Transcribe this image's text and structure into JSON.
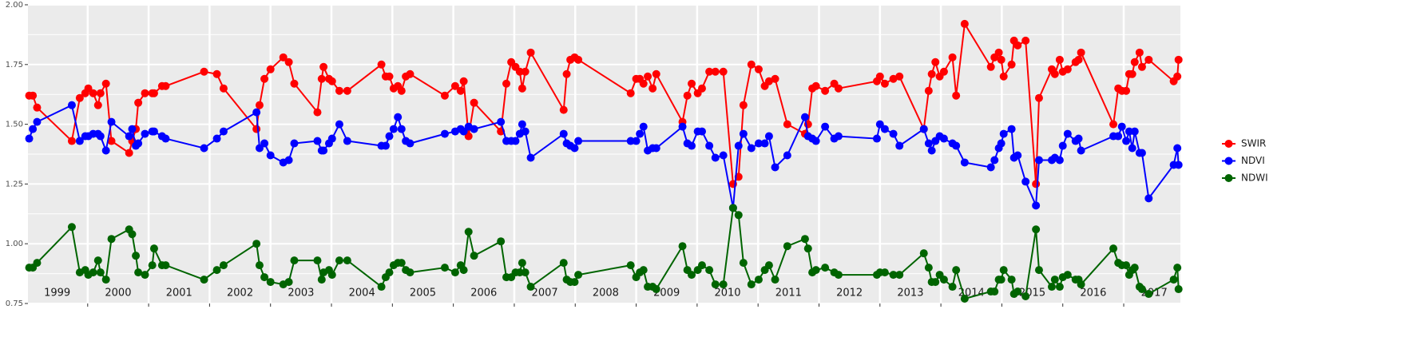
{
  "chart_data": {
    "type": "line",
    "x": [
      1999.04,
      1999.1,
      1999.17,
      1999.74,
      1999.87,
      1999.96,
      2000.01,
      2000.09,
      2000.17,
      2000.21,
      2000.3,
      2000.39,
      2000.68,
      2000.73,
      2000.79,
      2000.83,
      2000.94,
      2001.06,
      2001.09,
      2001.22,
      2001.28,
      2001.91,
      2002.12,
      2002.23,
      2002.77,
      2002.82,
      2002.9,
      2003.0,
      2003.21,
      2003.3,
      2003.39,
      2003.77,
      2003.84,
      2003.87,
      2003.96,
      2004.01,
      2004.13,
      2004.26,
      2004.82,
      2004.89,
      2004.95,
      2005.02,
      2005.09,
      2005.15,
      2005.22,
      2005.29,
      2005.86,
      2006.03,
      2006.12,
      2006.17,
      2006.25,
      2006.34,
      2006.78,
      2006.87,
      2006.95,
      2007.02,
      2007.09,
      2007.13,
      2007.18,
      2007.27,
      2007.81,
      2007.86,
      2007.92,
      2007.99,
      2008.05,
      2008.91,
      2009.0,
      2009.06,
      2009.12,
      2009.19,
      2009.27,
      2009.33,
      2009.76,
      2009.84,
      2009.91,
      2010.01,
      2010.08,
      2010.2,
      2010.3,
      2010.43,
      2010.59,
      2010.68,
      2010.76,
      2010.89,
      2011.01,
      2011.11,
      2011.18,
      2011.28,
      2011.48,
      2011.77,
      2011.82,
      2011.89,
      2011.95,
      2012.1,
      2012.25,
      2012.32,
      2012.95,
      2013.0,
      2013.08,
      2013.22,
      2013.32,
      2013.72,
      2013.8,
      2013.85,
      2013.91,
      2013.98,
      2014.05,
      2014.19,
      2014.25,
      2014.39,
      2014.82,
      2014.88,
      2014.95,
      2014.99,
      2015.03,
      2015.16,
      2015.2,
      2015.26,
      2015.39,
      2015.56,
      2015.61,
      2015.82,
      2015.87,
      2015.95,
      2016.0,
      2016.08,
      2016.21,
      2016.26,
      2016.3,
      2016.83,
      2016.91,
      2016.97,
      2017.04,
      2017.09,
      2017.14,
      2017.18,
      2017.26,
      2017.3,
      2017.41,
      2017.82,
      2017.88,
      2017.9
    ],
    "series": [
      {
        "name": "SWIR",
        "color": "#ff0000",
        "values": [
          1.62,
          1.62,
          1.57,
          1.43,
          1.61,
          1.63,
          1.65,
          1.63,
          1.58,
          1.63,
          1.67,
          1.43,
          1.38,
          1.43,
          1.48,
          1.59,
          1.63,
          1.63,
          1.63,
          1.66,
          1.66,
          1.72,
          1.71,
          1.65,
          1.48,
          1.58,
          1.69,
          1.73,
          1.78,
          1.76,
          1.67,
          1.55,
          1.69,
          1.74,
          1.69,
          1.68,
          1.64,
          1.64,
          1.75,
          1.7,
          1.7,
          1.65,
          1.66,
          1.64,
          1.7,
          1.71,
          1.62,
          1.66,
          1.64,
          1.68,
          1.45,
          1.59,
          1.47,
          1.67,
          1.76,
          1.74,
          1.72,
          1.65,
          1.72,
          1.8,
          1.56,
          1.71,
          1.77,
          1.78,
          1.77,
          1.63,
          1.69,
          1.69,
          1.67,
          1.7,
          1.65,
          1.71,
          1.51,
          1.62,
          1.67,
          1.63,
          1.65,
          1.72,
          1.72,
          1.72,
          1.25,
          1.28,
          1.58,
          1.75,
          1.73,
          1.66,
          1.68,
          1.69,
          1.5,
          1.46,
          1.5,
          1.65,
          1.66,
          1.64,
          1.67,
          1.65,
          1.68,
          1.7,
          1.67,
          1.69,
          1.7,
          1.48,
          1.64,
          1.71,
          1.76,
          1.7,
          1.72,
          1.78,
          1.62,
          1.92,
          1.74,
          1.78,
          1.8,
          1.77,
          1.7,
          1.75,
          1.85,
          1.83,
          1.85,
          1.25,
          1.61,
          1.73,
          1.71,
          1.77,
          1.72,
          1.73,
          1.76,
          1.77,
          1.8,
          1.5,
          1.65,
          1.64,
          1.64,
          1.71,
          1.71,
          1.76,
          1.8,
          1.74,
          1.77,
          1.68,
          1.7,
          1.77
        ]
      },
      {
        "name": "NDVI",
        "color": "#0000ff",
        "values": [
          1.44,
          1.48,
          1.51,
          1.58,
          1.43,
          1.45,
          1.45,
          1.46,
          1.46,
          1.45,
          1.39,
          1.51,
          1.45,
          1.48,
          1.41,
          1.42,
          1.46,
          1.47,
          1.47,
          1.45,
          1.44,
          1.4,
          1.44,
          1.47,
          1.55,
          1.4,
          1.42,
          1.37,
          1.34,
          1.35,
          1.42,
          1.43,
          1.39,
          1.39,
          1.42,
          1.44,
          1.5,
          1.43,
          1.41,
          1.41,
          1.45,
          1.48,
          1.53,
          1.48,
          1.43,
          1.42,
          1.46,
          1.47,
          1.48,
          1.47,
          1.49,
          1.48,
          1.51,
          1.43,
          1.43,
          1.43,
          1.46,
          1.5,
          1.47,
          1.36,
          1.46,
          1.42,
          1.41,
          1.4,
          1.43,
          1.43,
          1.43,
          1.46,
          1.49,
          1.39,
          1.4,
          1.4,
          1.49,
          1.42,
          1.41,
          1.47,
          1.47,
          1.41,
          1.36,
          1.37,
          1.15,
          1.41,
          1.46,
          1.4,
          1.42,
          1.42,
          1.45,
          1.32,
          1.37,
          1.53,
          1.45,
          1.44,
          1.43,
          1.49,
          1.44,
          1.45,
          1.44,
          1.5,
          1.48,
          1.46,
          1.41,
          1.48,
          1.42,
          1.39,
          1.43,
          1.45,
          1.44,
          1.42,
          1.41,
          1.34,
          1.32,
          1.35,
          1.4,
          1.42,
          1.46,
          1.48,
          1.36,
          1.37,
          1.26,
          1.16,
          1.35,
          1.35,
          1.36,
          1.35,
          1.41,
          1.46,
          1.43,
          1.44,
          1.39,
          1.45,
          1.45,
          1.49,
          1.43,
          1.47,
          1.4,
          1.47,
          1.38,
          1.38,
          1.19,
          1.33,
          1.4,
          1.33
        ]
      },
      {
        "name": "NDWI",
        "color": "#006400",
        "values": [
          0.9,
          0.9,
          0.92,
          1.07,
          0.88,
          0.89,
          0.87,
          0.88,
          0.93,
          0.88,
          0.85,
          1.02,
          1.06,
          1.04,
          0.95,
          0.88,
          0.87,
          0.91,
          0.98,
          0.91,
          0.91,
          0.85,
          0.89,
          0.91,
          1.0,
          0.91,
          0.86,
          0.84,
          0.83,
          0.84,
          0.93,
          0.93,
          0.85,
          0.88,
          0.89,
          0.87,
          0.93,
          0.93,
          0.82,
          0.86,
          0.88,
          0.91,
          0.92,
          0.92,
          0.89,
          0.88,
          0.9,
          0.88,
          0.91,
          0.89,
          1.05,
          0.95,
          1.01,
          0.86,
          0.86,
          0.88,
          0.88,
          0.92,
          0.88,
          0.82,
          0.92,
          0.85,
          0.84,
          0.84,
          0.87,
          0.91,
          0.86,
          0.88,
          0.89,
          0.82,
          0.82,
          0.81,
          0.99,
          0.89,
          0.87,
          0.89,
          0.91,
          0.89,
          0.83,
          0.83,
          1.15,
          1.12,
          0.92,
          0.83,
          0.85,
          0.89,
          0.91,
          0.85,
          0.99,
          1.02,
          0.98,
          0.88,
          0.89,
          0.9,
          0.88,
          0.87,
          0.87,
          0.88,
          0.88,
          0.87,
          0.87,
          0.96,
          0.9,
          0.84,
          0.84,
          0.87,
          0.85,
          0.82,
          0.89,
          0.77,
          0.8,
          0.8,
          0.85,
          0.85,
          0.89,
          0.85,
          0.79,
          0.8,
          0.78,
          1.06,
          0.89,
          0.82,
          0.85,
          0.82,
          0.86,
          0.87,
          0.85,
          0.85,
          0.83,
          0.98,
          0.92,
          0.91,
          0.91,
          0.87,
          0.89,
          0.9,
          0.82,
          0.81,
          0.79,
          0.85,
          0.9,
          0.81
        ]
      }
    ],
    "xlim": [
      1999.02,
      2017.93
    ],
    "xgrid": [
      2000,
      2001,
      2002,
      2003,
      2004,
      2005,
      2006,
      2007,
      2008,
      2009,
      2010,
      2011,
      2012,
      2013,
      2014,
      2015,
      2016,
      2017
    ],
    "xticks": [
      {
        "value": 1999.5,
        "label": "1999"
      },
      {
        "value": 2000.5,
        "label": "2000"
      },
      {
        "value": 2001.5,
        "label": "2001"
      },
      {
        "value": 2002.5,
        "label": "2002"
      },
      {
        "value": 2003.5,
        "label": "2003"
      },
      {
        "value": 2004.5,
        "label": "2004"
      },
      {
        "value": 2005.5,
        "label": "2005"
      },
      {
        "value": 2006.5,
        "label": "2006"
      },
      {
        "value": 2007.5,
        "label": "2007"
      },
      {
        "value": 2008.5,
        "label": "2008"
      },
      {
        "value": 2009.5,
        "label": "2009"
      },
      {
        "value": 2010.5,
        "label": "2010"
      },
      {
        "value": 2011.5,
        "label": "2011"
      },
      {
        "value": 2012.5,
        "label": "2012"
      },
      {
        "value": 2013.5,
        "label": "2013"
      },
      {
        "value": 2014.5,
        "label": "2014"
      },
      {
        "value": 2015.5,
        "label": "2015"
      },
      {
        "value": 2016.5,
        "label": "2016"
      },
      {
        "value": 2017.5,
        "label": "2017"
      }
    ],
    "ylim": [
      0.75,
      2.0
    ],
    "yticks": [
      {
        "value": 0.75,
        "label": "0.75"
      },
      {
        "value": 1.0,
        "label": "1.00"
      },
      {
        "value": 1.25,
        "label": "1.25"
      },
      {
        "value": 1.5,
        "label": "1.50"
      },
      {
        "value": 1.75,
        "label": "1.75"
      },
      {
        "value": 2.0,
        "label": "2.00"
      }
    ],
    "grid": true,
    "legend": "right"
  }
}
